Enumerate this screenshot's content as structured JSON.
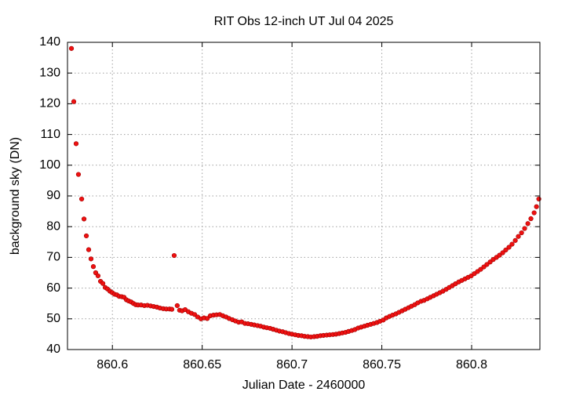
{
  "chart_data": {
    "type": "scatter",
    "title": "RIT Obs 12-inch UT Jul 04 2025",
    "x_label": "Julian Date - 2460000",
    "y_label": "background sky (DN)",
    "color": "#ee1111",
    "grid": true,
    "xlim": [
      860.575,
      860.838
    ],
    "ylim": [
      40,
      140
    ],
    "xticks": [
      860.6,
      860.65,
      860.7,
      860.75,
      860.8
    ],
    "yticks": [
      40,
      50,
      60,
      70,
      80,
      90,
      100,
      110,
      120,
      130,
      140
    ],
    "x": [
      860.5772,
      860.5785,
      860.5798,
      860.5811,
      860.5829,
      860.5842,
      860.5855,
      860.5868,
      860.5881,
      860.5894,
      860.5907,
      860.592,
      860.5934,
      860.5947,
      860.596,
      860.5973,
      860.5986,
      860.5999,
      860.6012,
      860.6025,
      860.6038,
      860.6052,
      860.6065,
      860.6078,
      860.6091,
      860.6104,
      860.6117,
      860.613,
      860.6143,
      860.616,
      860.6178,
      860.6195,
      860.6213,
      860.623,
      860.6248,
      860.6265,
      860.6283,
      860.63,
      860.6318,
      860.6331,
      860.6344,
      860.6361,
      860.6374,
      860.6388,
      860.6405,
      860.6423,
      860.644,
      860.6458,
      860.6475,
      860.6493,
      860.651,
      860.6528,
      860.6545,
      860.6563,
      860.658,
      860.6598,
      860.6615,
      860.6633,
      860.665,
      860.6668,
      860.6685,
      860.6703,
      860.672,
      860.6738,
      860.6755,
      860.6773,
      860.679,
      860.6808,
      860.6825,
      860.6843,
      860.686,
      860.6878,
      860.6895,
      860.6913,
      860.693,
      860.6948,
      860.6965,
      860.6983,
      860.7,
      860.7018,
      860.7035,
      860.7053,
      860.707,
      860.7088,
      860.7105,
      860.7123,
      860.714,
      860.7158,
      860.7175,
      860.7193,
      860.721,
      860.7228,
      860.7245,
      860.7263,
      860.728,
      860.7298,
      860.7315,
      860.7333,
      860.735,
      860.7368,
      860.7385,
      860.7403,
      860.742,
      860.7438,
      860.7455,
      860.7473,
      860.749,
      860.7508,
      860.7525,
      860.7543,
      860.756,
      860.7578,
      860.7595,
      860.7613,
      860.763,
      860.7648,
      860.7665,
      860.7683,
      860.77,
      860.7718,
      860.7735,
      860.7753,
      860.777,
      860.7788,
      860.7805,
      860.7823,
      860.784,
      860.7858,
      860.7875,
      860.7893,
      860.791,
      860.7928,
      860.7945,
      860.7963,
      860.798,
      860.7998,
      860.8015,
      860.8033,
      860.805,
      860.8068,
      860.8085,
      860.8103,
      860.812,
      860.8138,
      860.8155,
      860.8173,
      860.819,
      860.8208,
      860.8225,
      860.8243,
      860.826,
      860.8278,
      860.8295,
      860.8313,
      860.833,
      860.8348,
      860.8361,
      860.8374
    ],
    "values": [
      138,
      120.7,
      107,
      97,
      89,
      82.5,
      77,
      72.5,
      69.5,
      67,
      65,
      64,
      62.2,
      61.5,
      60.2,
      59.7,
      59,
      58.5,
      58,
      57.8,
      57.3,
      57.2,
      57,
      56.2,
      55.8,
      55.5,
      55,
      54.6,
      54.5,
      54.5,
      54.3,
      54.4,
      54.2,
      54,
      53.8,
      53.5,
      53.3,
      53.2,
      53.2,
      53.1,
      70.6,
      54.3,
      52.8,
      52.6,
      53,
      52.3,
      51.8,
      51.4,
      50.6,
      50,
      50.3,
      50.1,
      51,
      51.2,
      51.3,
      51.4,
      51,
      50.6,
      50.1,
      49.7,
      49.3,
      48.9,
      49,
      48.5,
      48.4,
      48.2,
      48,
      47.8,
      47.6,
      47.3,
      47.1,
      46.9,
      46.6,
      46.3,
      46,
      45.8,
      45.5,
      45.2,
      45,
      44.8,
      44.6,
      44.5,
      44.3,
      44.2,
      44.1,
      44.2,
      44.3,
      44.5,
      44.6,
      44.7,
      44.8,
      44.9,
      45,
      45.2,
      45.4,
      45.6,
      45.9,
      46.2,
      46.5,
      47,
      47.3,
      47.6,
      47.9,
      48.2,
      48.5,
      48.8,
      49.2,
      49.6,
      50.3,
      50.8,
      51.2,
      51.6,
      52.1,
      52.6,
      53.1,
      53.6,
      54.1,
      54.6,
      55.2,
      55.7,
      56,
      56.5,
      57,
      57.5,
      58,
      58.5,
      59,
      59.6,
      60.2,
      60.8,
      61.4,
      62,
      62.5,
      63,
      63.5,
      64,
      64.7,
      65.4,
      66.1,
      66.9,
      67.7,
      68.5,
      69.3,
      70,
      70.7,
      71.5,
      72.4,
      73.3,
      74.3,
      75.5,
      76.8,
      78,
      79.4,
      81,
      82.6,
      84.5,
      86.5,
      89
    ]
  }
}
